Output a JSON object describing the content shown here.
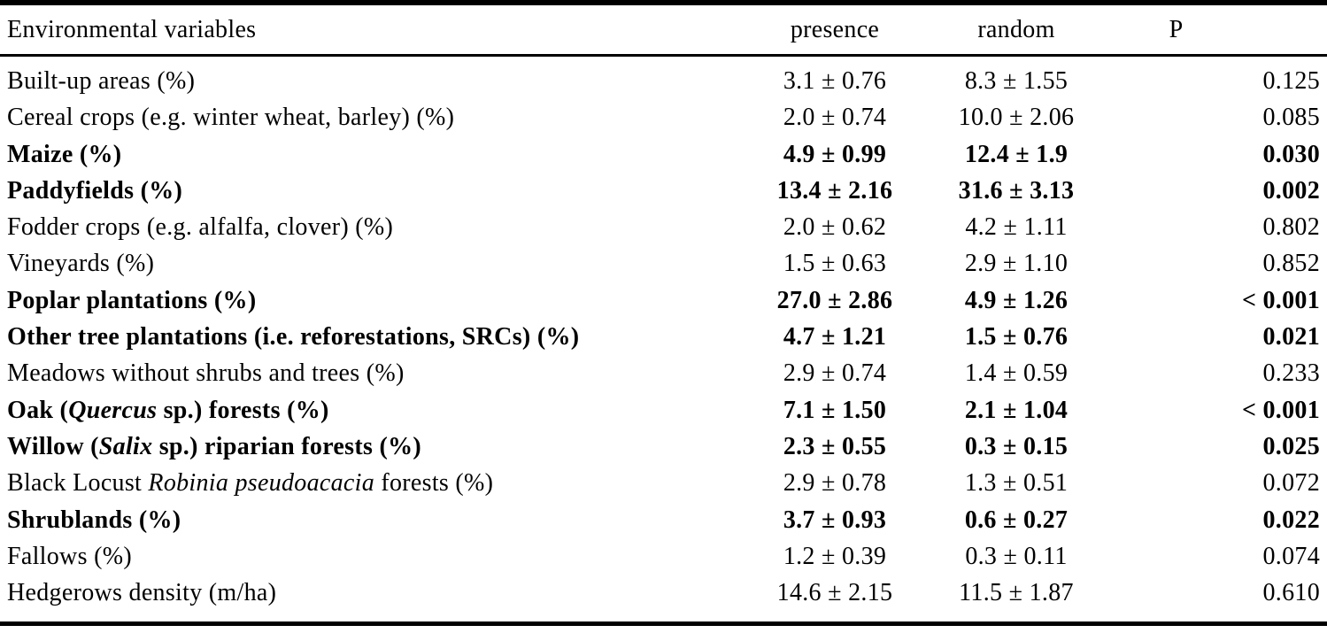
{
  "table": {
    "header": {
      "variable": "Environmental variables",
      "presence": "presence",
      "random": "random",
      "p": "P"
    },
    "rows": [
      {
        "bold": false,
        "variable": [
          {
            "t": "Built-up areas (%)"
          }
        ],
        "presence": "3.1 ± 0.76",
        "random": "8.3 ± 1.55",
        "p": "0.125"
      },
      {
        "bold": false,
        "variable": [
          {
            "t": "Cereal crops (e.g. winter wheat, barley) (%)"
          }
        ],
        "presence": "2.0 ± 0.74",
        "random": "10.0 ± 2.06",
        "p": "0.085"
      },
      {
        "bold": true,
        "variable": [
          {
            "t": "Maize (%)"
          }
        ],
        "presence": "4.9 ± 0.99",
        "random": "12.4 ± 1.9",
        "p": "0.030"
      },
      {
        "bold": true,
        "variable": [
          {
            "t": "Paddyfields (%)"
          }
        ],
        "presence": "13.4 ± 2.16",
        "random": "31.6 ± 3.13",
        "p": "0.002"
      },
      {
        "bold": false,
        "variable": [
          {
            "t": "Fodder crops (e.g. alfalfa, clover) (%)"
          }
        ],
        "presence": "2.0 ± 0.62",
        "random": "4.2 ± 1.11",
        "p": "0.802"
      },
      {
        "bold": false,
        "variable": [
          {
            "t": "Vineyards (%)"
          }
        ],
        "presence": "1.5 ± 0.63",
        "random": "2.9 ± 1.10",
        "p": "0.852"
      },
      {
        "bold": true,
        "variable": [
          {
            "t": "Poplar plantations (%)"
          }
        ],
        "presence": "27.0 ± 2.86",
        "random": "4.9 ± 1.26",
        "p": "< 0.001"
      },
      {
        "bold": true,
        "variable": [
          {
            "t": "Other tree plantations (i.e. reforestations, SRCs) (%)"
          }
        ],
        "presence": "4.7 ± 1.21",
        "random": "1.5 ± 0.76",
        "p": "0.021"
      },
      {
        "bold": false,
        "variable": [
          {
            "t": "Meadows without shrubs and trees (%)"
          }
        ],
        "presence": "2.9 ± 0.74",
        "random": "1.4 ± 0.59",
        "p": "0.233"
      },
      {
        "bold": true,
        "variable": [
          {
            "t": "Oak ("
          },
          {
            "t": "Quercus",
            "i": true
          },
          {
            "t": " sp.) forests (%)"
          }
        ],
        "presence": "7.1 ± 1.50",
        "random": "2.1 ± 1.04",
        "p": "< 0.001"
      },
      {
        "bold": true,
        "variable": [
          {
            "t": "Willow ("
          },
          {
            "t": "Salix",
            "i": true
          },
          {
            "t": " sp.) riparian forests (%)"
          }
        ],
        "presence": "2.3 ± 0.55",
        "random": "0.3 ± 0.15",
        "p": "0.025"
      },
      {
        "bold": false,
        "variable": [
          {
            "t": "Black Locust "
          },
          {
            "t": "Robinia pseudoacacia",
            "i": true
          },
          {
            "t": " forests (%)"
          }
        ],
        "presence": "2.9 ± 0.78",
        "random": "1.3 ± 0.51",
        "p": "0.072"
      },
      {
        "bold": true,
        "variable": [
          {
            "t": "Shrublands (%)"
          }
        ],
        "presence": "3.7 ± 0.93",
        "random": "0.6 ± 0.27",
        "p": "0.022"
      },
      {
        "bold": false,
        "variable": [
          {
            "t": "Fallows (%)"
          }
        ],
        "presence": "1.2 ± 0.39",
        "random": "0.3 ± 0.11",
        "p": "0.074"
      },
      {
        "bold": false,
        "variable": [
          {
            "t": "Hedgerows density (m/ha)"
          }
        ],
        "presence": "14.6 ± 2.15",
        "random": "11.5 ± 1.87",
        "p": "0.610"
      }
    ]
  },
  "colors": {
    "background": "#ffffff",
    "text": "#000000",
    "rule": "#000000"
  }
}
